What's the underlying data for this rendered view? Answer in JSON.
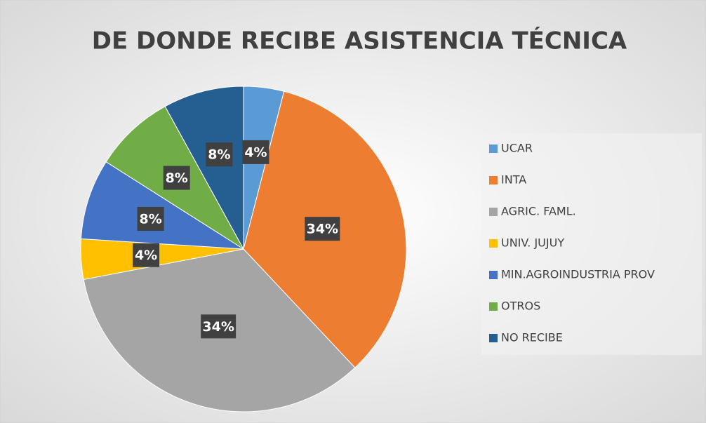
{
  "chart_data": {
    "type": "pie",
    "title": "DE DONDE RECIBE ASISTENCIA TÉCNICA",
    "categories": [
      "UCAR",
      "INTA",
      "AGRIC. FAML.",
      "UNIV. JUJUY",
      "MIN.AGROINDUSTRIA PROV",
      "OTROS",
      "NO RECIBE"
    ],
    "values": [
      4,
      34,
      34,
      4,
      8,
      8,
      8
    ],
    "value_labels": [
      "4%",
      "34%",
      "34%",
      "4%",
      "8%",
      "8%",
      "8%"
    ],
    "colors": [
      "#5b9bd5",
      "#ed7d31",
      "#a5a5a5",
      "#ffc000",
      "#4472c4",
      "#70ad47",
      "#255e91"
    ],
    "legend": "right"
  }
}
